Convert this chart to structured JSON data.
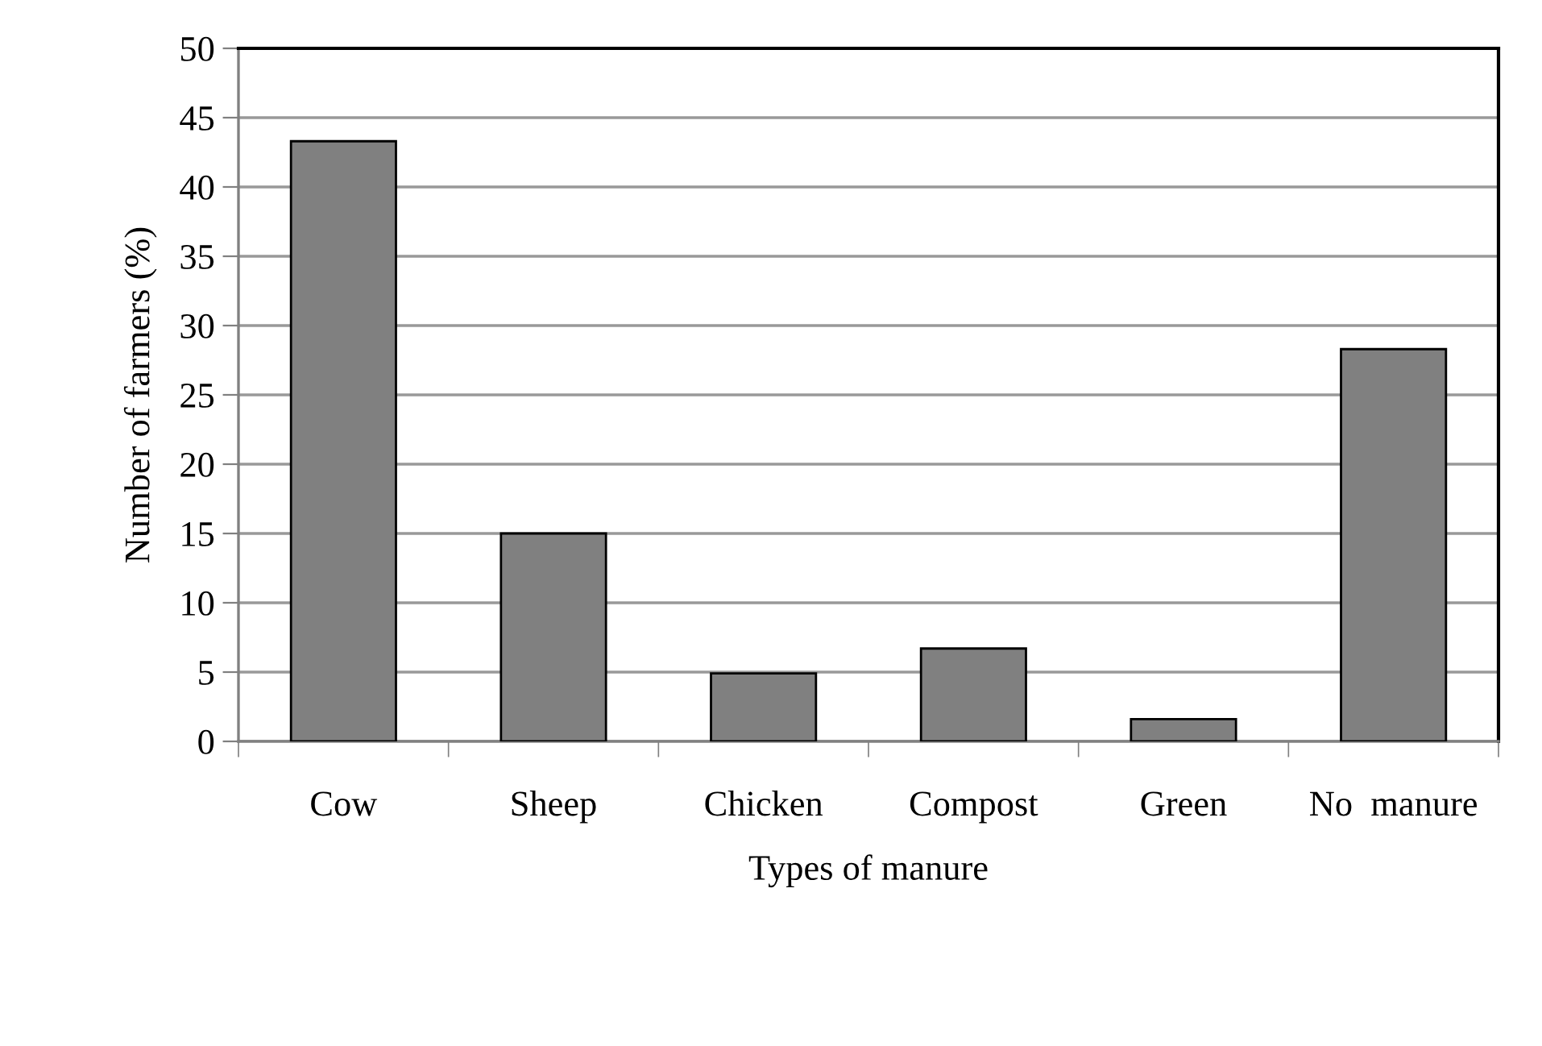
{
  "chart_data": {
    "type": "bar",
    "xlabel": "Types of manure",
    "ylabel": "Number of farmers (%)",
    "categories": [
      "Cow",
      "Sheep",
      "Chicken",
      "Compost",
      "Green",
      "No  manure"
    ],
    "values": [
      43.3,
      15,
      4.9,
      6.7,
      1.6,
      28.3
    ],
    "color": "#808080",
    "ylim": [
      0,
      50
    ],
    "yticks": [
      0,
      5,
      10,
      15,
      20,
      25,
      30,
      35,
      40,
      45,
      50
    ],
    "grid": "y",
    "legend": false
  }
}
